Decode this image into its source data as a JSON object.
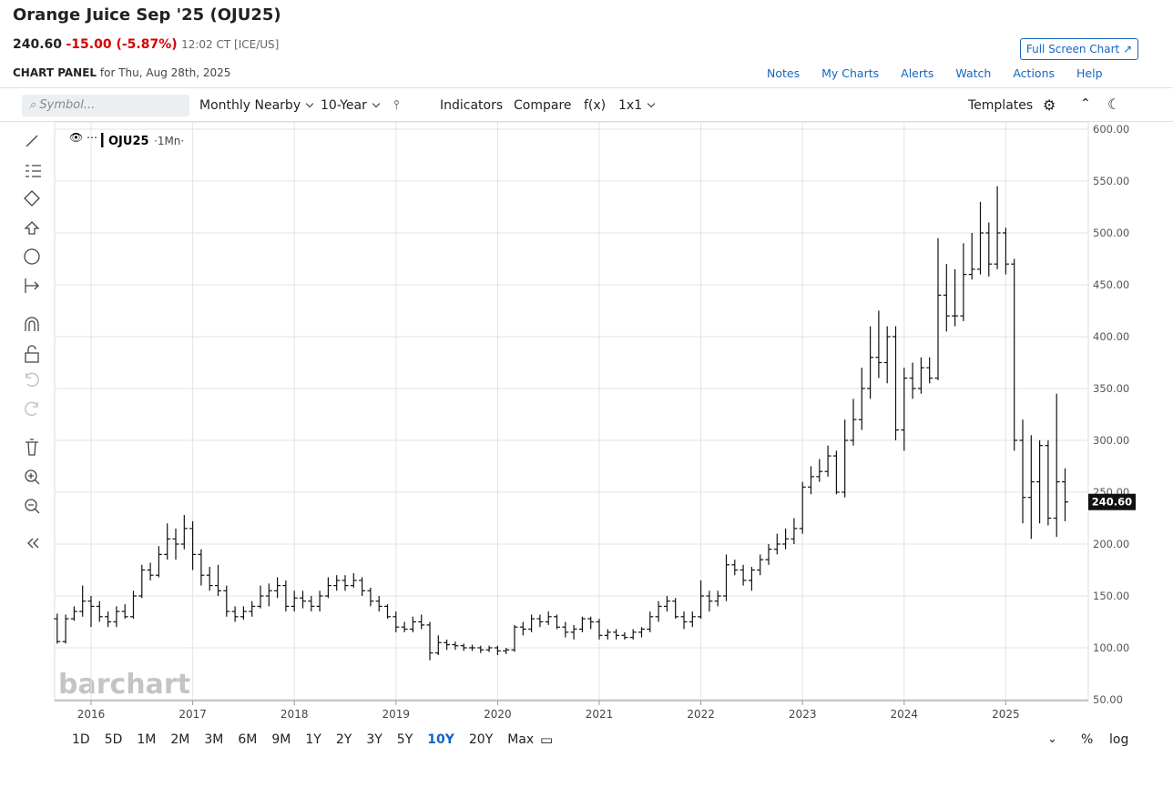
{
  "header": {
    "title": "Orange Juice Sep '25 (OJU25)",
    "change": "-15.00 (-5.87%)",
    "time": "12:02 CT [ICE/US]",
    "full_screen": "Full Screen Chart",
    "panel": "CHART PANEL",
    "date": "for Thu, Aug 28th, 2025"
  },
  "menu": [
    "Notes",
    "My Charts",
    "Alerts",
    "Watch",
    "Actions",
    "Help"
  ],
  "toolbar": {
    "symbol": "Symbol...",
    "items": [
      "Monthly Nearby",
      "10-Year",
      "Indicators",
      "Compare",
      "f(x)",
      "1x1"
    ],
    "templates": "Templates"
  },
  "periods": [
    "1D",
    "5D",
    "1M",
    "2M",
    "3M",
    "6M",
    "9M",
    "1Y",
    "2Y",
    "3Y",
    "5Y",
    "10Y",
    "20Y",
    "Max"
  ],
  "active_period": 11,
  "bottom_right": [
    "%",
    "log"
  ],
  "watermark": "barchart",
  "chart_data": {
    "type": "ohlc",
    "legend": "OJU25",
    "interval": "·1Mn·",
    "color": "#111111",
    "grid": true,
    "last_price": {
      "value": 240.6,
      "label": "240.60"
    },
    "ylim": [
      50,
      600
    ],
    "yticks": [
      {
        "value": 50,
        "label": "50.00"
      },
      {
        "value": 100,
        "label": "100.00"
      },
      {
        "value": 150,
        "label": "150.00"
      },
      {
        "value": 200,
        "label": "200.00"
      },
      {
        "value": 250,
        "label": "250.00"
      },
      {
        "value": 300,
        "label": "300.00"
      },
      {
        "value": 350,
        "label": "350.00"
      },
      {
        "value": 400,
        "label": "400.00"
      },
      {
        "value": 450,
        "label": "450.00"
      },
      {
        "value": 500,
        "label": "500.00"
      },
      {
        "value": 550,
        "label": "550.00"
      },
      {
        "value": 600,
        "label": "600.00"
      }
    ],
    "categories": [
      null,
      null,
      null,
      null,
      "2016",
      null,
      null,
      null,
      null,
      null,
      null,
      null,
      null,
      null,
      null,
      null,
      "2017",
      null,
      null,
      null,
      null,
      null,
      null,
      null,
      null,
      null,
      null,
      null,
      "2018",
      null,
      null,
      null,
      null,
      null,
      null,
      null,
      null,
      null,
      null,
      null,
      "2019",
      null,
      null,
      null,
      null,
      null,
      null,
      null,
      null,
      null,
      null,
      null,
      "2020",
      null,
      null,
      null,
      null,
      null,
      null,
      null,
      null,
      null,
      null,
      null,
      "2021",
      null,
      null,
      null,
      null,
      null,
      null,
      null,
      null,
      null,
      null,
      null,
      "2022",
      null,
      null,
      null,
      null,
      null,
      null,
      null,
      null,
      null,
      null,
      null,
      "2023",
      null,
      null,
      null,
      null,
      null,
      null,
      null,
      null,
      null,
      null,
      null,
      "2024",
      null,
      null,
      null,
      null,
      null,
      null,
      null,
      null,
      null,
      null,
      null,
      "2025",
      null,
      null,
      null,
      null,
      null,
      null,
      null
    ],
    "open": [
      128,
      106,
      128,
      135,
      145,
      140,
      130,
      125,
      135,
      130,
      150,
      175,
      170,
      190,
      205,
      200,
      215,
      190,
      170,
      160,
      155,
      135,
      130,
      135,
      140,
      150,
      155,
      160,
      140,
      148,
      145,
      140,
      150,
      160,
      165,
      160,
      165,
      155,
      145,
      140,
      130,
      120,
      118,
      125,
      122,
      95,
      105,
      103,
      102,
      100,
      100,
      98,
      100,
      97,
      98,
      120,
      118,
      128,
      125,
      130,
      120,
      115,
      118,
      128,
      125,
      112,
      115,
      112,
      110,
      115,
      118,
      130,
      140,
      145,
      130,
      125,
      130,
      150,
      145,
      150,
      180,
      175,
      165,
      175,
      185,
      195,
      200,
      205,
      215,
      255,
      265,
      270,
      285,
      250,
      300,
      320,
      350,
      380,
      375,
      400,
      310,
      360,
      350,
      370,
      360,
      440,
      420,
      420,
      460,
      465,
      500,
      470,
      500,
      470,
      300,
      245,
      260,
      295,
      225,
      260
    ],
    "high": [
      133,
      132,
      140,
      160,
      150,
      145,
      135,
      140,
      142,
      155,
      180,
      182,
      198,
      220,
      215,
      228,
      222,
      195,
      178,
      180,
      160,
      140,
      140,
      145,
      160,
      162,
      168,
      165,
      155,
      155,
      150,
      155,
      168,
      170,
      170,
      172,
      168,
      158,
      150,
      142,
      135,
      125,
      130,
      132,
      125,
      112,
      108,
      106,
      104,
      103,
      102,
      102,
      102,
      100,
      122,
      125,
      132,
      132,
      135,
      132,
      125,
      122,
      130,
      130,
      128,
      118,
      118,
      115,
      118,
      120,
      135,
      145,
      150,
      148,
      135,
      135,
      165,
      155,
      155,
      190,
      185,
      180,
      178,
      190,
      200,
      210,
      215,
      225,
      260,
      275,
      282,
      295,
      290,
      320,
      340,
      370,
      410,
      425,
      410,
      410,
      370,
      375,
      380,
      380,
      495,
      470,
      465,
      490,
      500,
      530,
      510,
      545,
      505,
      475,
      320,
      305,
      300,
      300,
      345,
      273
    ],
    "low": [
      104,
      104,
      126,
      130,
      120,
      125,
      120,
      120,
      128,
      128,
      148,
      165,
      168,
      185,
      185,
      195,
      175,
      160,
      155,
      150,
      130,
      125,
      127,
      130,
      138,
      140,
      148,
      135,
      135,
      138,
      135,
      135,
      148,
      155,
      155,
      158,
      150,
      140,
      135,
      128,
      115,
      115,
      115,
      118,
      88,
      93,
      98,
      98,
      97,
      97,
      95,
      96,
      93,
      94,
      96,
      112,
      115,
      120,
      122,
      118,
      110,
      108,
      115,
      118,
      108,
      108,
      108,
      108,
      108,
      110,
      115,
      125,
      135,
      128,
      118,
      120,
      128,
      135,
      140,
      145,
      170,
      160,
      155,
      170,
      180,
      190,
      195,
      200,
      210,
      248,
      260,
      265,
      248,
      245,
      295,
      310,
      340,
      360,
      355,
      300,
      290,
      340,
      345,
      355,
      358,
      405,
      410,
      415,
      455,
      460,
      458,
      465,
      460,
      290,
      220,
      205,
      220,
      218,
      207,
      222
    ],
    "close": [
      106,
      128,
      135,
      145,
      140,
      130,
      125,
      135,
      130,
      150,
      175,
      170,
      190,
      205,
      200,
      215,
      190,
      170,
      160,
      155,
      135,
      130,
      135,
      140,
      150,
      155,
      160,
      140,
      148,
      145,
      140,
      150,
      160,
      165,
      160,
      165,
      155,
      145,
      140,
      130,
      120,
      118,
      125,
      122,
      95,
      105,
      103,
      102,
      100,
      100,
      98,
      100,
      97,
      98,
      120,
      118,
      128,
      125,
      130,
      120,
      115,
      118,
      128,
      125,
      112,
      115,
      112,
      110,
      115,
      118,
      130,
      140,
      145,
      130,
      125,
      130,
      150,
      145,
      150,
      180,
      175,
      165,
      175,
      185,
      195,
      200,
      205,
      215,
      255,
      265,
      270,
      285,
      250,
      300,
      320,
      350,
      380,
      375,
      400,
      310,
      360,
      350,
      370,
      360,
      440,
      420,
      420,
      460,
      465,
      500,
      470,
      500,
      470,
      300,
      245,
      260,
      295,
      225,
      260,
      240.6
    ]
  }
}
